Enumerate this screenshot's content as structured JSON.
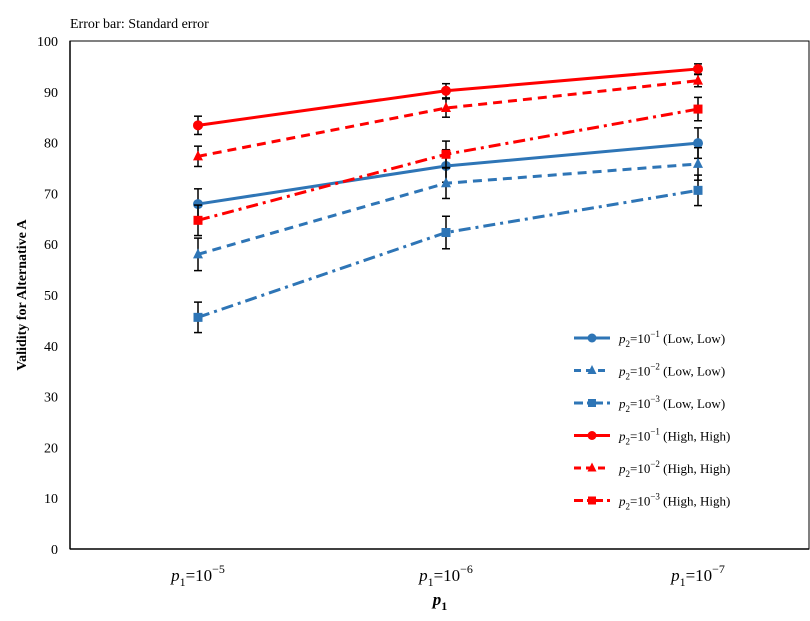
{
  "colors": {
    "blue": "#2E75B6",
    "red": "#FF0000",
    "axis": "#000000",
    "errorbar": "#000000"
  },
  "chart_data": {
    "type": "line",
    "note": "Error bar: Standard error",
    "ylabel": "Validity for Alternative A",
    "xlabel": {
      "base": "p",
      "sub": "1"
    },
    "categories": [
      {
        "base": "p",
        "sub": "1",
        "eq": "=10",
        "exp": "−5"
      },
      {
        "base": "p",
        "sub": "1",
        "eq": "=10",
        "exp": "−6"
      },
      {
        "base": "p",
        "sub": "1",
        "eq": "=10",
        "exp": "−7"
      }
    ],
    "ylim": [
      0,
      100
    ],
    "yticks": [
      "0",
      "10",
      "20",
      "30",
      "40",
      "50",
      "60",
      "70",
      "80",
      "90",
      "100"
    ],
    "grid": false,
    "legend_position": "lower-right",
    "series": [
      {
        "legend": {
          "base": "p",
          "sub": "2",
          "eq": "=10",
          "exp": "−1",
          "suffix": " (Low, Low)"
        },
        "color": "blue",
        "dash": "solid",
        "marker": "circle",
        "values": [
          67.9,
          75.4,
          79.9
        ],
        "err": [
          3.0,
          3.2,
          3.0
        ]
      },
      {
        "legend": {
          "base": "p",
          "sub": "2",
          "eq": "=10",
          "exp": "−2",
          "suffix": " (Low, Low)"
        },
        "color": "blue",
        "dash": "dash",
        "marker": "triangle",
        "values": [
          58.0,
          72.0,
          75.8
        ],
        "err": [
          3.2,
          3.0,
          3.2
        ]
      },
      {
        "legend": {
          "base": "p",
          "sub": "2",
          "eq": "=10",
          "exp": "−3",
          "suffix": " (Low, Low)"
        },
        "color": "blue",
        "dash": "dashdot",
        "marker": "square",
        "values": [
          45.6,
          62.3,
          70.6
        ],
        "err": [
          3.0,
          3.2,
          3.0
        ]
      },
      {
        "legend": {
          "base": "p",
          "sub": "2",
          "eq": "=10",
          "exp": "−1",
          "suffix": " (High, High)"
        },
        "color": "red",
        "dash": "solid",
        "marker": "circle",
        "values": [
          83.4,
          90.2,
          94.5
        ],
        "err": [
          1.8,
          1.4,
          1.0
        ]
      },
      {
        "legend": {
          "base": "p",
          "sub": "2",
          "eq": "=10",
          "exp": "−2",
          "suffix": " (High, High)"
        },
        "color": "red",
        "dash": "dash",
        "marker": "triangle",
        "values": [
          77.3,
          86.8,
          92.2
        ],
        "err": [
          2.0,
          1.8,
          1.2
        ]
      },
      {
        "legend": {
          "base": "p",
          "sub": "2",
          "eq": "=10",
          "exp": "−3",
          "suffix": " (High, High)"
        },
        "color": "red",
        "dash": "dashdot",
        "marker": "square",
        "values": [
          64.7,
          77.7,
          86.6
        ],
        "err": [
          3.0,
          2.6,
          2.3
        ]
      }
    ]
  }
}
